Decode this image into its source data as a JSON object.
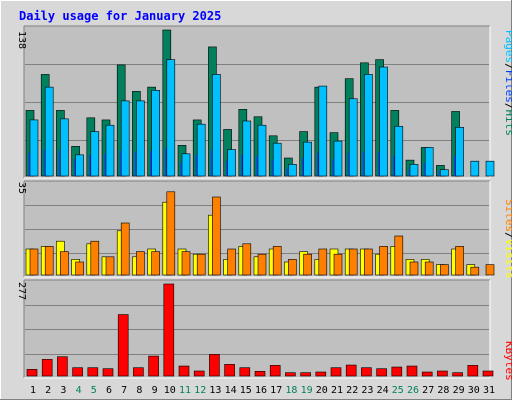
{
  "title": "Daily usage for January 2025",
  "colors": {
    "hits": "#00805c",
    "files": "#0040ff",
    "pages": "#00c0ff",
    "visits": "#ffff00",
    "sites": "#ff8000",
    "kbytes": "#ff0000",
    "title": "#0000ff",
    "weekend": "#00805c",
    "panel": "#c0c0c0",
    "background": "#d8d8d8"
  },
  "side_labels": {
    "top": [
      "Pages",
      "Files",
      "Hits"
    ],
    "middle": [
      "Sites",
      "Visits"
    ],
    "bottom": [
      "KBytes"
    ],
    "separator": "/"
  },
  "chart_data": [
    {
      "type": "bar",
      "name": "hits-files-pages",
      "categories": [
        "1",
        "2",
        "3",
        "4",
        "5",
        "6",
        "7",
        "8",
        "9",
        "10",
        "11",
        "12",
        "13",
        "14",
        "15",
        "16",
        "17",
        "18",
        "19",
        "20",
        "21",
        "22",
        "23",
        "24",
        "25",
        "26",
        "27",
        "28",
        "29",
        "30",
        "31"
      ],
      "weekend_days": [
        "4",
        "5",
        "11",
        "12",
        "18",
        "19",
        "25",
        "26"
      ],
      "ymax_label": "138",
      "ylim": [
        0,
        138
      ],
      "series": [
        {
          "name": "Hits",
          "values": [
            62,
            96,
            62,
            28,
            55,
            53,
            105,
            80,
            84,
            138,
            29,
            53,
            122,
            44,
            63,
            56,
            38,
            17,
            42,
            84,
            41,
            92,
            107,
            110,
            62,
            15,
            27,
            10,
            61,
            0,
            0
          ]
        },
        {
          "name": "Files",
          "values": [
            22,
            25,
            24,
            16,
            20,
            21,
            24,
            23,
            24,
            26,
            13,
            20,
            25,
            14,
            20,
            19,
            15,
            7,
            17,
            22,
            16,
            22,
            23,
            23,
            19,
            6,
            12,
            5,
            19,
            0,
            0
          ]
        },
        {
          "name": "Pages",
          "values": [
            53,
            84,
            54,
            20,
            42,
            48,
            71,
            71,
            81,
            110,
            21,
            49,
            96,
            25,
            52,
            48,
            31,
            11,
            32,
            85,
            33,
            73,
            96,
            103,
            47,
            11,
            27,
            6,
            46,
            14,
            14
          ]
        }
      ]
    },
    {
      "type": "bar",
      "name": "visits-sites",
      "categories": [
        "1",
        "2",
        "3",
        "4",
        "5",
        "6",
        "7",
        "8",
        "9",
        "10",
        "11",
        "12",
        "13",
        "14",
        "15",
        "16",
        "17",
        "18",
        "19",
        "20",
        "21",
        "22",
        "23",
        "24",
        "25",
        "26",
        "27",
        "28",
        "29",
        "30",
        "31"
      ],
      "ymax_label": "35",
      "ylim": [
        0,
        35
      ],
      "series": [
        {
          "name": "Visits",
          "values": [
            10,
            11,
            13,
            6,
            12,
            7,
            17,
            7,
            10,
            28,
            10,
            8,
            23,
            6,
            11,
            7,
            10,
            5,
            9,
            6,
            10,
            10,
            10,
            8,
            11,
            6,
            6,
            4,
            10,
            4,
            0
          ]
        },
        {
          "name": "Sites",
          "values": [
            10,
            11,
            9,
            5,
            13,
            7,
            20,
            9,
            9,
            32,
            9,
            8,
            30,
            10,
            12,
            8,
            11,
            6,
            8,
            10,
            8,
            10,
            10,
            11,
            15,
            5,
            5,
            4,
            11,
            3,
            4
          ]
        }
      ]
    },
    {
      "type": "bar",
      "name": "kbytes",
      "categories": [
        "1",
        "2",
        "3",
        "4",
        "5",
        "6",
        "7",
        "8",
        "9",
        "10",
        "11",
        "12",
        "13",
        "14",
        "15",
        "16",
        "17",
        "18",
        "19",
        "20",
        "21",
        "22",
        "23",
        "24",
        "25",
        "26",
        "27",
        "28",
        "29",
        "30",
        "31"
      ],
      "ymax_label": "277",
      "ylim": [
        0,
        277
      ],
      "series": [
        {
          "name": "KBytes",
          "values": [
            20,
            50,
            58,
            25,
            25,
            22,
            185,
            25,
            60,
            277,
            30,
            15,
            65,
            35,
            25,
            14,
            32,
            10,
            10,
            12,
            25,
            33,
            25,
            22,
            27,
            30,
            12,
            15,
            10,
            32,
            15
          ]
        }
      ]
    }
  ]
}
